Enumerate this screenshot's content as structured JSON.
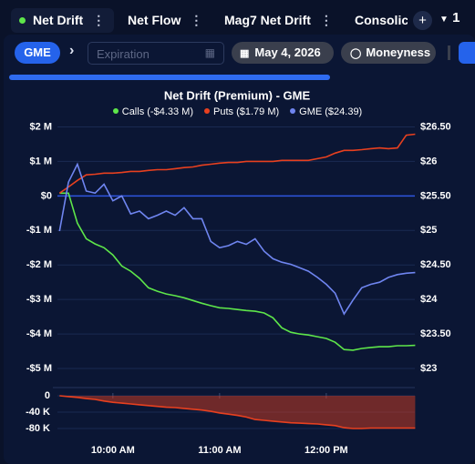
{
  "tabs": [
    {
      "label": "Net Drift",
      "active": true
    },
    {
      "label": "Net Flow"
    },
    {
      "label": "Mag7 Net Drift"
    },
    {
      "label": "Consolic"
    }
  ],
  "tab_count": "1",
  "toolbar": {
    "ticker": "GME",
    "expiration_placeholder": "Expiration",
    "date": "May 4, 2026",
    "moneyness": "Moneyness"
  },
  "chart_data": [
    {
      "type": "line",
      "title": "Net Drift (Premium) - GME",
      "x": [
        9.5,
        9.583,
        9.667,
        9.75,
        9.833,
        9.917,
        10,
        10.083,
        10.167,
        10.25,
        10.333,
        10.417,
        10.5,
        10.583,
        10.667,
        10.75,
        10.833,
        10.917,
        11,
        11.083,
        11.167,
        11.25,
        11.333,
        11.417,
        11.5,
        11.583,
        11.667,
        11.75,
        11.833,
        11.917,
        12,
        12.083,
        12.167,
        12.25,
        12.333,
        12.417,
        12.5,
        12.583,
        12.667,
        12.75,
        12.833
      ],
      "xlim": [
        9.48,
        12.83
      ],
      "series": [
        {
          "name": "Calls (-$4.33 M)",
          "color": "#5ee64a",
          "values": [
            0.08,
            0.08,
            -0.79,
            -1.24,
            -1.39,
            -1.5,
            -1.71,
            -2.03,
            -2.18,
            -2.39,
            -2.66,
            -2.76,
            -2.84,
            -2.89,
            -2.95,
            -3.03,
            -3.11,
            -3.18,
            -3.24,
            -3.26,
            -3.29,
            -3.32,
            -3.34,
            -3.39,
            -3.53,
            -3.82,
            -3.95,
            -4.0,
            -4.03,
            -4.08,
            -4.13,
            -4.24,
            -4.45,
            -4.47,
            -4.42,
            -4.39,
            -4.37,
            -4.37,
            -4.34,
            -4.34,
            -4.33
          ]
        },
        {
          "name": "Puts ($1.79 M)",
          "color": "#e8401f",
          "values": [
            0.08,
            0.26,
            0.45,
            0.61,
            0.63,
            0.66,
            0.66,
            0.68,
            0.71,
            0.71,
            0.74,
            0.76,
            0.76,
            0.79,
            0.82,
            0.84,
            0.89,
            0.92,
            0.95,
            0.97,
            0.97,
            1.0,
            1.0,
            1.0,
            1.0,
            1.03,
            1.03,
            1.03,
            1.03,
            1.08,
            1.13,
            1.24,
            1.32,
            1.32,
            1.34,
            1.37,
            1.39,
            1.37,
            1.39,
            1.76,
            1.79
          ]
        },
        {
          "name": "GME ($24.39)",
          "color": "#6f85f0",
          "axis": "y2",
          "values": [
            24.99,
            25.7,
            25.96,
            25.57,
            25.54,
            25.67,
            25.43,
            25.5,
            25.24,
            25.28,
            25.17,
            25.22,
            25.28,
            25.22,
            25.33,
            25.17,
            25.17,
            24.84,
            24.75,
            24.78,
            24.84,
            24.8,
            24.88,
            24.7,
            24.59,
            24.54,
            24.51,
            24.46,
            24.41,
            24.32,
            24.22,
            24.09,
            23.79,
            23.99,
            24.17,
            24.22,
            24.25,
            24.32,
            24.36,
            24.38,
            24.39
          ]
        }
      ],
      "ylim": [
        -5.5,
        2.25
      ],
      "yticks": [
        {
          "value": 2,
          "label": "$2 M"
        },
        {
          "value": 1,
          "label": "$1 M"
        },
        {
          "value": 0,
          "label": "$0"
        },
        {
          "value": -1,
          "label": "-$1 M"
        },
        {
          "value": -2,
          "label": "-$2 M"
        },
        {
          "value": -3,
          "label": "-$3 M"
        },
        {
          "value": -4,
          "label": "-$4 M"
        },
        {
          "value": -5,
          "label": "-$5 M"
        }
      ],
      "y2lim": [
        22.75,
        26.625
      ],
      "y2ticks": [
        {
          "value": 26.5,
          "label": "$26.50"
        },
        {
          "value": 26,
          "label": "$26"
        },
        {
          "value": 25.5,
          "label": "$25.50"
        },
        {
          "value": 25,
          "label": "$25"
        },
        {
          "value": 24.5,
          "label": "$24.50"
        },
        {
          "value": 24,
          "label": "$24"
        },
        {
          "value": 23.5,
          "label": "$23.50"
        },
        {
          "value": 23,
          "label": "$23"
        }
      ],
      "grid": true
    },
    {
      "type": "area",
      "color": "#e8401f",
      "x": [
        9.5,
        9.583,
        9.667,
        9.75,
        9.833,
        9.917,
        10,
        10.083,
        10.167,
        10.25,
        10.333,
        10.417,
        10.5,
        10.583,
        10.667,
        10.75,
        10.833,
        10.917,
        11,
        11.083,
        11.167,
        11.25,
        11.333,
        11.417,
        11.5,
        11.583,
        11.667,
        11.75,
        11.833,
        11.917,
        12,
        12.083,
        12.167,
        12.25,
        12.333,
        12.417,
        12.5,
        12.583,
        12.667,
        12.75,
        12.833
      ],
      "values": [
        0,
        -2,
        -4,
        -7,
        -9,
        -13,
        -16,
        -18,
        -20,
        -22,
        -24,
        -26,
        -28,
        -29,
        -31,
        -33,
        -35,
        -38,
        -42,
        -45,
        -48,
        -52,
        -58,
        -60,
        -62,
        -64,
        -66,
        -67,
        -68,
        -69,
        -71,
        -73,
        -78,
        -80,
        -80,
        -79,
        -79,
        -79,
        -79,
        -79,
        -79
      ],
      "xlim": [
        9.48,
        12.83
      ],
      "xticks": [
        {
          "value": 10,
          "label": "10:00 AM"
        },
        {
          "value": 11,
          "label": "11:00 AM"
        },
        {
          "value": 12,
          "label": "12:00 PM"
        }
      ],
      "ylim": [
        -100,
        11
      ],
      "yticks": [
        0,
        {
          "value": -40,
          "label": "-40 K"
        },
        {
          "value": -80,
          "label": "-80 K"
        }
      ]
    }
  ]
}
